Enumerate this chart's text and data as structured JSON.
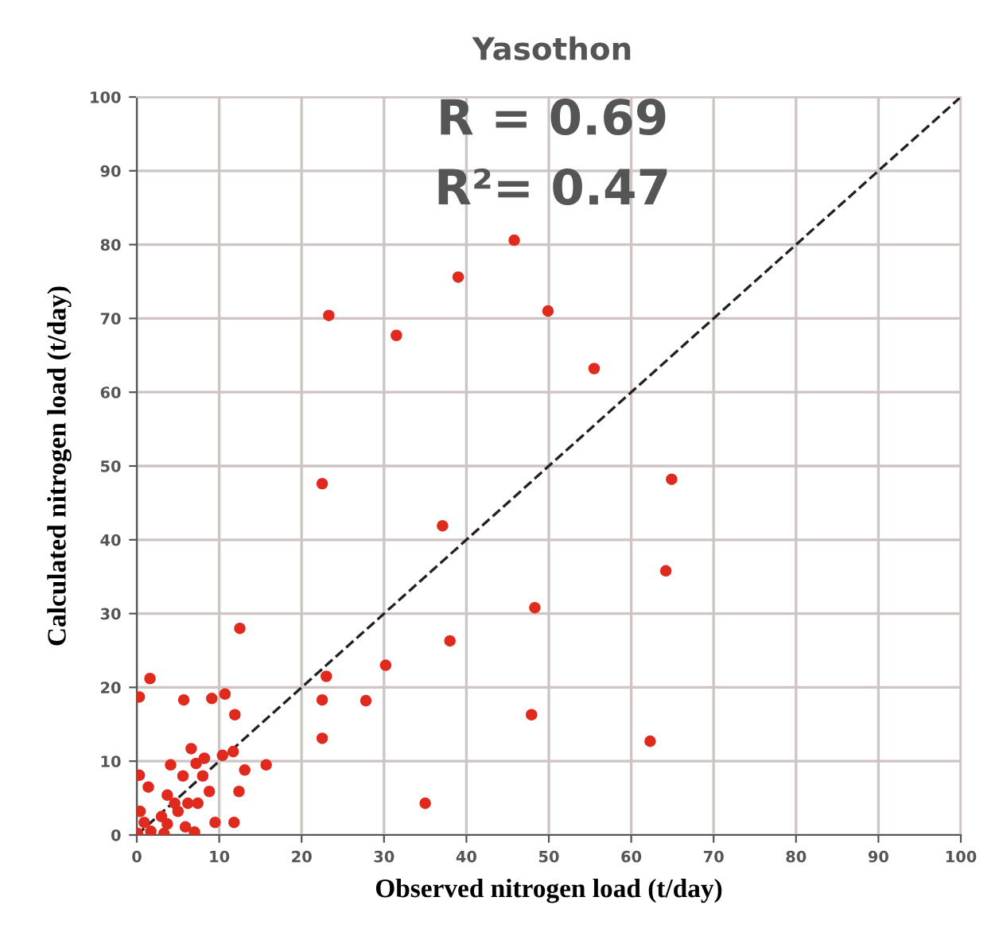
{
  "chart_data": {
    "type": "scatter",
    "title": "Yasothon",
    "xlabel": "Observed nitrogen load (t/day)",
    "ylabel": "Calculated nitrogen load (t/day)",
    "annotations": [
      "R = 0.69",
      "R²= 0.47"
    ],
    "xlim": [
      0,
      100
    ],
    "ylim": [
      0,
      100
    ],
    "xticks": [
      0,
      10,
      20,
      30,
      40,
      50,
      60,
      70,
      80,
      90,
      100
    ],
    "yticks": [
      0,
      10,
      20,
      30,
      40,
      50,
      60,
      70,
      80,
      90,
      100
    ],
    "grid": true,
    "series": [
      {
        "color": "#e02a1e",
        "marker": "circle",
        "x": [
          45.8,
          39.0,
          23.3,
          31.5,
          49.9,
          55.5,
          22.5,
          64.9,
          37.1,
          64.2,
          48.3,
          38.0,
          30.2,
          23.0,
          22.5,
          27.8,
          47.9,
          62.3,
          35.0,
          22.5,
          12.5,
          1.6,
          0.3,
          5.7,
          9.1,
          10.7,
          11.9,
          6.6,
          4.1,
          7.2,
          8.2,
          10.4,
          11.7,
          13.1,
          15.7,
          0.3,
          5.6,
          8.0,
          1.4,
          8.8,
          12.4,
          4.6,
          6.2,
          7.4,
          3.7,
          11.8,
          9.5,
          5.9,
          3.0,
          3.7,
          1.7,
          7.0,
          5.0,
          0.4,
          0.9,
          0.1,
          3.3
        ],
        "values": [
          80.6,
          75.6,
          70.4,
          67.7,
          71.0,
          63.2,
          47.6,
          48.2,
          41.9,
          35.8,
          30.8,
          26.3,
          23.0,
          21.5,
          18.3,
          18.2,
          16.3,
          12.7,
          4.3,
          13.1,
          28.0,
          21.2,
          18.7,
          18.3,
          18.5,
          19.1,
          16.3,
          11.7,
          9.5,
          9.7,
          10.4,
          10.8,
          11.3,
          8.8,
          9.5,
          8.1,
          8.0,
          8.0,
          6.5,
          5.9,
          5.9,
          4.3,
          4.3,
          4.3,
          5.4,
          1.7,
          1.7,
          1.1,
          2.5,
          1.5,
          0.5,
          0.4,
          3.2,
          3.2,
          1.7,
          0.2,
          0.2
        ]
      },
      {
        "type": "line",
        "color": "#222222",
        "marker": "none",
        "line_style": "dashed",
        "x": [
          0,
          100
        ],
        "values": [
          0,
          100
        ]
      }
    ]
  }
}
